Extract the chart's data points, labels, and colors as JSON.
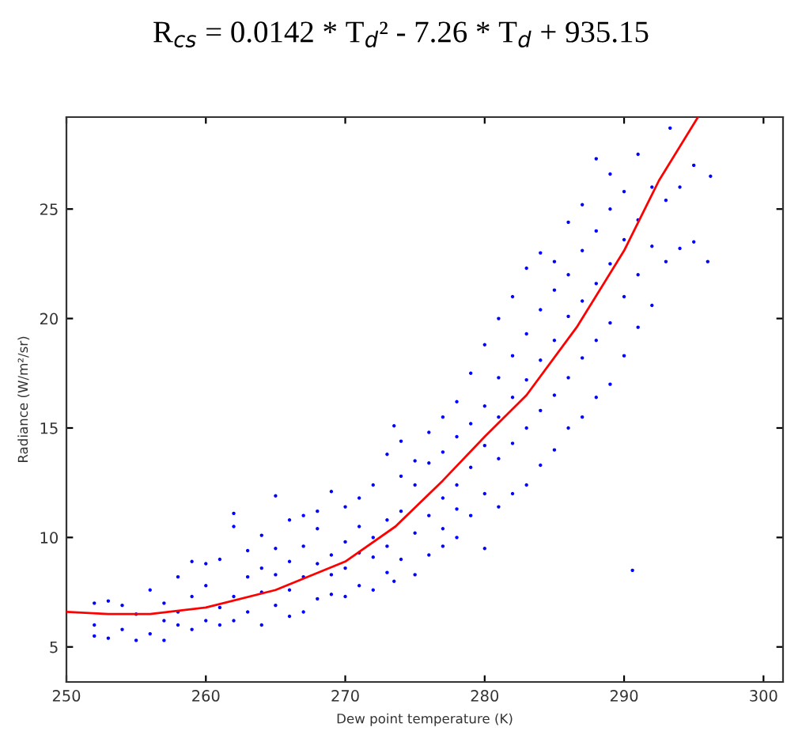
{
  "chart_data": {
    "type": "scatter",
    "title": "R$_{cs}$ = 0.0142 * T$_{d}$² - 7.26 * T$_{d}$ + 935.15",
    "xlabel": "Dew point temperature (K)",
    "ylabel": "Radiance (W/m²/sr)",
    "xlim": [
      250,
      301.4
    ],
    "xticks": [
      250,
      260,
      270,
      280,
      290,
      300
    ],
    "ylim": [
      3.4,
      29.2
    ],
    "yticks": [
      5,
      10,
      15,
      20,
      25
    ],
    "grid": false,
    "legend": false,
    "series": [
      {
        "color": "#0000ff",
        "x": [
          252,
          252,
          252,
          253,
          253,
          254,
          254,
          255,
          255,
          256,
          256,
          257,
          257,
          257,
          258,
          258,
          258,
          259,
          259,
          259,
          260,
          260,
          260,
          261,
          261,
          261,
          262,
          262,
          262,
          262,
          263,
          263,
          263,
          264,
          264,
          264,
          264,
          265,
          265,
          265,
          265,
          266,
          266,
          266,
          266,
          267,
          267,
          267,
          267,
          268,
          268,
          268,
          268,
          269,
          269,
          269,
          269,
          270,
          270,
          270,
          270,
          271,
          271,
          271,
          271,
          272,
          272,
          272,
          272,
          273,
          273,
          273,
          273,
          273.5,
          273.5,
          274,
          274,
          274,
          274,
          275,
          275,
          275,
          275,
          276,
          276,
          276,
          276,
          277,
          277,
          277,
          277,
          277,
          278,
          278,
          278,
          278,
          278,
          279,
          279,
          279,
          279,
          280,
          280,
          280,
          280,
          280,
          281,
          281,
          281,
          281,
          281,
          282,
          282,
          282,
          282,
          282,
          283,
          283,
          283,
          283,
          283,
          284,
          284,
          284,
          284,
          284,
          285,
          285,
          285,
          285,
          285,
          286,
          286,
          286,
          286,
          286,
          287,
          287,
          287,
          287,
          287,
          288,
          288,
          288,
          288,
          288,
          289,
          289,
          289,
          289,
          289,
          290,
          290,
          290,
          290,
          290.6,
          291,
          291,
          291,
          291,
          292,
          292,
          292,
          293.3,
          293,
          293,
          294,
          294,
          295,
          295,
          296,
          296.2
        ],
        "values": [
          5.5,
          6.0,
          7.0,
          5.4,
          7.1,
          5.8,
          6.9,
          5.3,
          6.5,
          5.6,
          7.6,
          5.3,
          6.2,
          7.0,
          6.0,
          8.2,
          6.6,
          5.8,
          7.3,
          8.9,
          6.2,
          7.8,
          8.8,
          6.8,
          9.0,
          6.0,
          7.3,
          10.5,
          6.2,
          11.1,
          6.6,
          8.2,
          9.4,
          6.0,
          7.5,
          10.1,
          8.6,
          6.9,
          8.3,
          11.9,
          9.5,
          6.4,
          7.6,
          10.8,
          8.9,
          6.6,
          8.2,
          11.0,
          9.6,
          7.2,
          8.8,
          10.4,
          11.2,
          7.4,
          9.2,
          12.1,
          8.3,
          7.3,
          9.8,
          11.4,
          8.6,
          7.8,
          9.3,
          11.8,
          10.5,
          7.6,
          10.0,
          12.4,
          9.1,
          8.4,
          10.8,
          13.8,
          9.6,
          15.1,
          8.0,
          9.0,
          11.2,
          12.8,
          14.4,
          8.3,
          10.2,
          12.4,
          13.5,
          9.2,
          11.0,
          13.4,
          14.8,
          9.6,
          11.8,
          13.9,
          10.4,
          15.5,
          10.0,
          12.4,
          14.6,
          16.2,
          11.3,
          11.0,
          13.2,
          15.2,
          17.5,
          9.5,
          12.0,
          14.2,
          16.0,
          18.8,
          11.4,
          13.6,
          15.5,
          17.3,
          20.0,
          12.0,
          14.3,
          16.4,
          18.3,
          21.0,
          12.4,
          15.0,
          17.2,
          19.3,
          22.3,
          13.3,
          15.8,
          18.1,
          20.4,
          23.0,
          14.0,
          16.5,
          19.0,
          21.3,
          22.6,
          15.0,
          17.3,
          20.1,
          22.0,
          24.4,
          15.5,
          18.2,
          20.8,
          23.1,
          25.2,
          16.4,
          19.0,
          21.6,
          24.0,
          27.3,
          17.0,
          19.8,
          22.5,
          25.0,
          26.6,
          18.3,
          21.0,
          23.6,
          25.8,
          8.5,
          19.6,
          22.0,
          24.5,
          27.5,
          20.6,
          23.3,
          26.0,
          28.7,
          22.6,
          25.4,
          23.2,
          26.0,
          23.5,
          27.0,
          22.6,
          26.5
        ]
      },
      {
        "type": "line",
        "color": "#ff0000",
        "x": [
          250,
          253,
          256,
          260,
          265,
          270,
          273.6,
          277,
          280,
          283,
          286.6,
          290,
          292.5,
          295.3
        ],
        "values": [
          6.6,
          6.5,
          6.5,
          6.8,
          7.6,
          8.9,
          10.5,
          12.6,
          14.6,
          16.5,
          19.6,
          23.1,
          26.3,
          29.2
        ]
      }
    ]
  }
}
